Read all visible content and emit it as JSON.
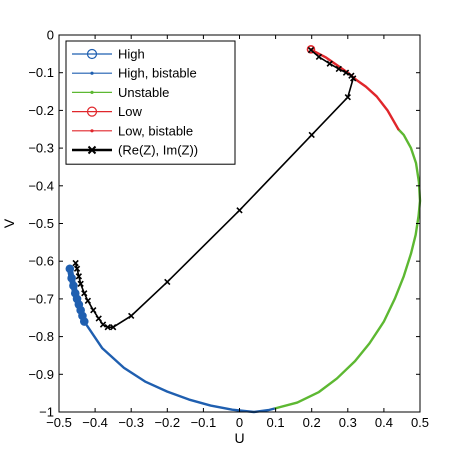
{
  "chart_data": {
    "type": "line",
    "title": "",
    "xlabel": "U",
    "ylabel": "V",
    "xlim": [
      -0.5,
      0.5
    ],
    "ylim": [
      -1,
      0
    ],
    "x_ticks": [
      -0.5,
      -0.4,
      -0.3,
      -0.2,
      -0.1,
      0,
      0.1,
      0.2,
      0.3,
      0.4,
      0.5
    ],
    "x_tick_labels": [
      "−0.5",
      "−0.4",
      "−0.3",
      "−0.2",
      "−0.1",
      "0",
      "0.1",
      "0.2",
      "0.3",
      "0.4",
      "0.5"
    ],
    "y_ticks": [
      0,
      -0.1,
      -0.2,
      -0.3,
      -0.4,
      -0.5,
      -0.6,
      -0.7,
      -0.8,
      -0.9,
      -1
    ],
    "y_tick_labels": [
      "0",
      "−0.1",
      "−0.2",
      "−0.3",
      "−0.4",
      "−0.5",
      "−0.6",
      "−0.7",
      "−0.8",
      "−0.9",
      "−1"
    ],
    "grid": false,
    "legend_position": "top-left",
    "series": [
      {
        "name": "High",
        "color": "#1f5fb0",
        "marker": "circle",
        "x": [
          -0.47,
          -0.465,
          -0.46,
          -0.455,
          -0.45,
          -0.445,
          -0.44,
          -0.435,
          -0.43
        ],
        "y": [
          -0.62,
          -0.645,
          -0.665,
          -0.685,
          -0.7,
          -0.715,
          -0.73,
          -0.745,
          -0.76
        ]
      },
      {
        "name": "High, bistable",
        "color": "#1f5fb0",
        "marker": "dot",
        "x": [
          -0.43,
          -0.38,
          -0.32,
          -0.26,
          -0.2,
          -0.14,
          -0.08,
          -0.02,
          0.04,
          0.08,
          0.1
        ],
        "y": [
          -0.76,
          -0.831,
          -0.883,
          -0.92,
          -0.946,
          -0.967,
          -0.983,
          -0.994,
          -1.0,
          -0.995,
          -0.99
        ]
      },
      {
        "name": "Unstable",
        "color": "#5db832",
        "marker": "dot",
        "x": [
          0.1,
          0.16,
          0.22,
          0.27,
          0.32,
          0.36,
          0.4,
          0.43,
          0.455,
          0.475,
          0.488,
          0.496,
          0.5,
          0.497,
          0.489,
          0.475,
          0.455,
          0.44
        ],
        "y": [
          -0.99,
          -0.975,
          -0.947,
          -0.911,
          -0.865,
          -0.818,
          -0.76,
          -0.7,
          -0.64,
          -0.58,
          -0.53,
          -0.48,
          -0.44,
          -0.39,
          -0.34,
          -0.3,
          -0.265,
          -0.25
        ]
      },
      {
        "name": "Low",
        "color": "#e0262b",
        "marker": "circle",
        "x": [
          0.198
        ],
        "y": [
          -0.038
        ]
      },
      {
        "name": "Low, bistable",
        "color": "#e0262b",
        "marker": "dot",
        "x": [
          0.44,
          0.41,
          0.38,
          0.35,
          0.325,
          0.3,
          0.27,
          0.24,
          0.21,
          0.198
        ],
        "y": [
          -0.25,
          -0.2,
          -0.163,
          -0.137,
          -0.12,
          -0.1,
          -0.08,
          -0.06,
          -0.045,
          -0.038
        ]
      },
      {
        "name": "(Re(Z), Im(Z))",
        "color": "#000000",
        "marker": "x",
        "x": [
          0.198,
          0.22,
          0.25,
          0.275,
          0.295,
          0.31,
          0.315,
          0.3,
          0.2,
          0.0,
          -0.2,
          -0.3,
          -0.35,
          -0.365,
          -0.378,
          -0.39,
          -0.405,
          -0.42,
          -0.43,
          -0.44,
          -0.445,
          -0.45,
          -0.454
        ],
        "y": [
          -0.04,
          -0.058,
          -0.076,
          -0.09,
          -0.1,
          -0.108,
          -0.115,
          -0.165,
          -0.265,
          -0.465,
          -0.655,
          -0.745,
          -0.775,
          -0.775,
          -0.768,
          -0.752,
          -0.73,
          -0.705,
          -0.685,
          -0.66,
          -0.64,
          -0.62,
          -0.605
        ]
      }
    ]
  }
}
